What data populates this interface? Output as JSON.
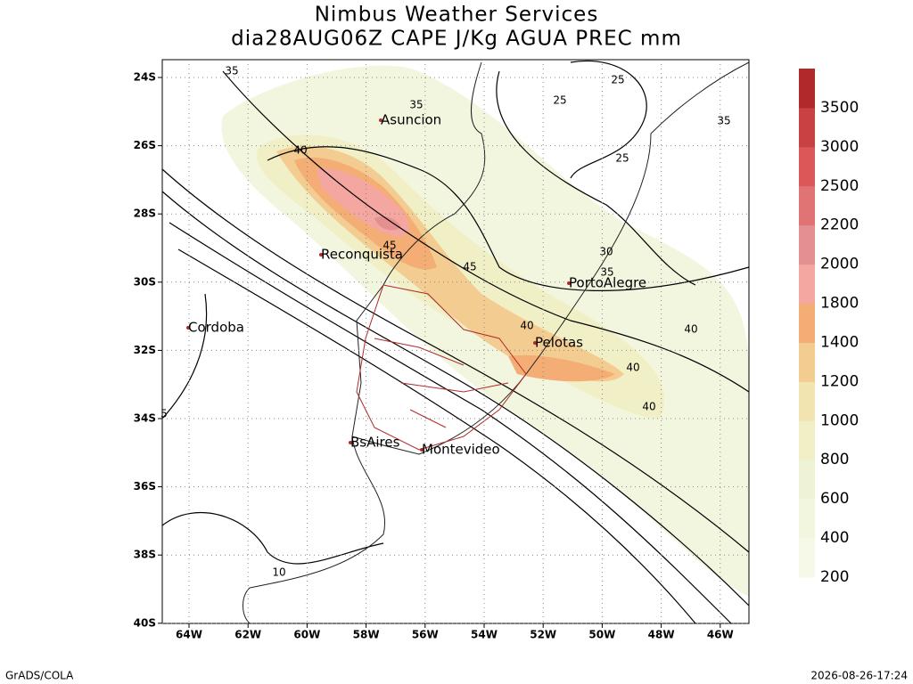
{
  "header": {
    "title": "Nimbus Weather Services",
    "subtitle": "dia28AUG06Z CAPE J/Kg AGUA PREC mm"
  },
  "map": {
    "lat_labels": [
      "24S",
      "26S",
      "28S",
      "30S",
      "32S",
      "34S",
      "36S",
      "38S",
      "40S"
    ],
    "lon_labels": [
      "64W",
      "62W",
      "60W",
      "58W",
      "56W",
      "54W",
      "52W",
      "50W",
      "48W",
      "46W"
    ],
    "cities": [
      "Asuncion",
      "Reconquista",
      "PortoAlegre",
      "Cordoba",
      "Pelotas",
      "BsAires",
      "Montevideo"
    ],
    "contour_labels": [
      "35",
      "35",
      "25",
      "25",
      "25",
      "35",
      "40",
      "45",
      "45",
      "30",
      "35",
      "40",
      "40",
      "40",
      "40",
      "10",
      "5"
    ]
  },
  "colorbar": {
    "labels": [
      "200",
      "400",
      "600",
      "800",
      "1000",
      "1200",
      "1400",
      "1800",
      "2000",
      "2200",
      "2500",
      "3000",
      "3500"
    ],
    "colors": [
      "#f6f8e8",
      "#f3f6df",
      "#eff3d6",
      "#f1efc6",
      "#f2e4b0",
      "#f3cc92",
      "#f4ad74",
      "#f4a6a0",
      "#e49090",
      "#e07474",
      "#dc5858",
      "#c84242",
      "#b02a2a"
    ]
  },
  "footer": {
    "left": "GrADS/COLA",
    "right": "2026-08-26-17:24"
  }
}
